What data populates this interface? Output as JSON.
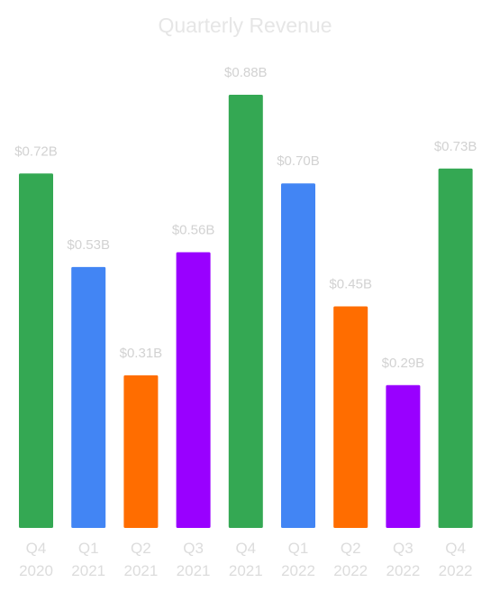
{
  "chart_data": {
    "type": "bar",
    "title": "Quarterly Revenue",
    "xlabel": "",
    "ylabel": "",
    "ylim": [
      0,
      0.88
    ],
    "grid": false,
    "legend": "none",
    "categories": [
      [
        "Q4",
        "2020"
      ],
      [
        "Q1",
        "2021"
      ],
      [
        "Q2",
        "2021"
      ],
      [
        "Q3",
        "2021"
      ],
      [
        "Q4",
        "2021"
      ],
      [
        "Q1",
        "2022"
      ],
      [
        "Q2",
        "2022"
      ],
      [
        "Q3",
        "2022"
      ],
      [
        "Q4",
        "2022"
      ]
    ],
    "values": [
      0.72,
      0.53,
      0.31,
      0.56,
      0.88,
      0.7,
      0.45,
      0.29,
      0.73
    ],
    "value_labels": [
      "$0.72B",
      "$0.53B",
      "$0.31B",
      "$0.56B",
      "$0.88B",
      "$0.70B",
      "$0.45B",
      "$0.29B",
      "$0.73B"
    ],
    "quarter_colors": {
      "Q1": "#4285F4",
      "Q2": "#FF6D00",
      "Q3": "#9900FF",
      "Q4": "#34A853"
    }
  }
}
